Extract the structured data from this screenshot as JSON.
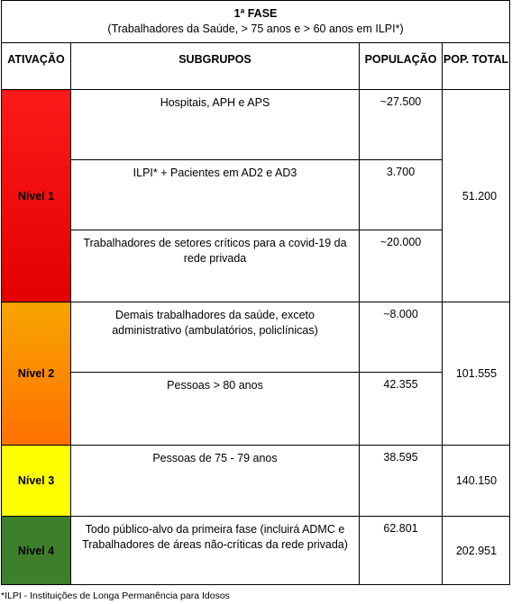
{
  "header": {
    "title": "1ª FASE",
    "subtitle": "(Trabalhadores da Saúde, > 75 anos e > 60 anos em ILPI*)"
  },
  "table": {
    "columns": [
      "ATIVAÇÃO",
      "SUBGRUPOS",
      "POPULAÇÃO",
      "POP. TOTAL"
    ],
    "groups": [
      {
        "level": "Nível 1",
        "total": "51.200",
        "rows": [
          {
            "subgroup": "Hospitais, APH e APS",
            "population": "~27.500"
          },
          {
            "subgroup": "ILPI* + Pacientes em AD2 e AD3",
            "population": "3.700"
          },
          {
            "subgroup": "Trabalhadores de setores críticos para a covid-19 da rede privada",
            "population": "~20.000"
          }
        ]
      },
      {
        "level": "Nível 2",
        "total": "101.555",
        "rows": [
          {
            "subgroup": "Demais trabalhadores da saúde, exceto administrativo (ambulatórios, policlínicas)",
            "population": "~8.000"
          },
          {
            "subgroup": "Pessoas > 80 anos",
            "population": "42.355"
          }
        ]
      },
      {
        "level": "Nível 3",
        "total": "140.150",
        "rows": [
          {
            "subgroup": "Pessoas de 75 - 79 anos",
            "population": "38.595"
          }
        ]
      },
      {
        "level": "Nível 4",
        "total": "202.951",
        "rows": [
          {
            "subgroup": "Todo público-alvo da primeira fase (incluirá ADMC e Trabalhadores de áreas não-críticas da rede privada)",
            "population": "62.801"
          }
        ]
      }
    ]
  },
  "footnote": "*ILPI - Instituições de Longa Permanência para Idosos"
}
